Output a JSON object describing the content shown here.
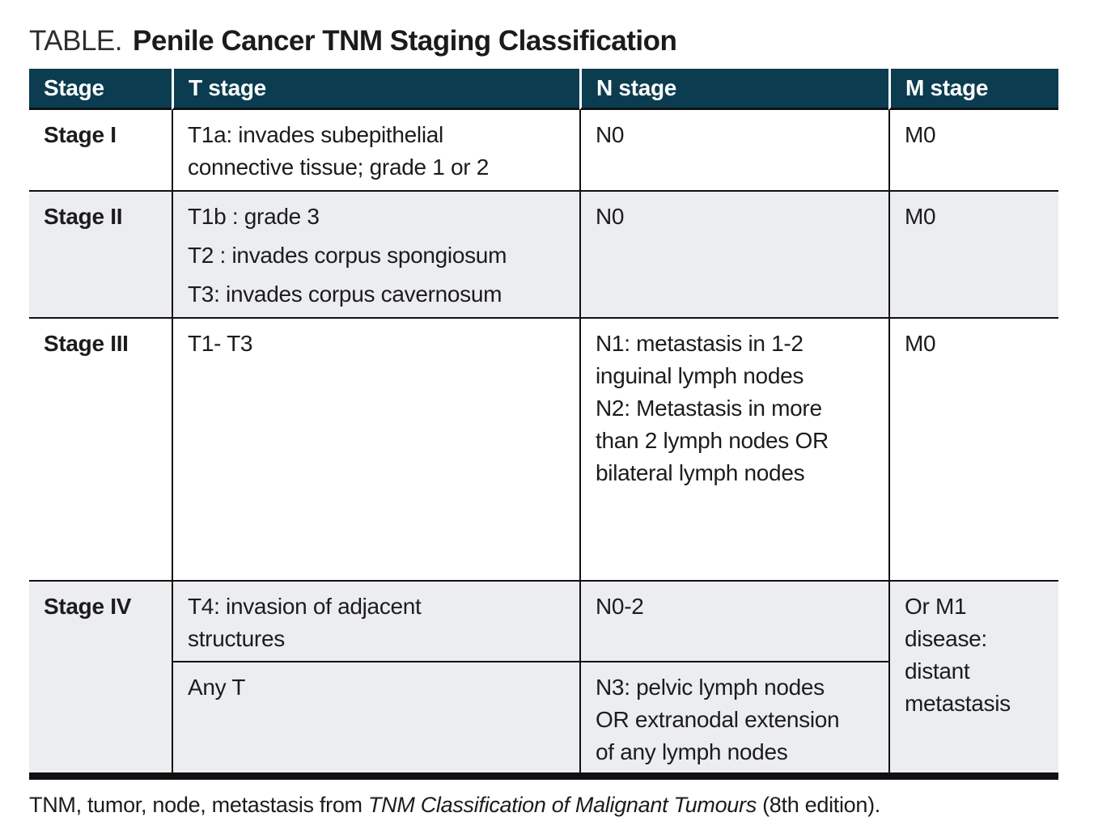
{
  "title": {
    "prefix": "TABLE.",
    "main": "Penile Cancer TNM Staging Classification"
  },
  "colors": {
    "header_bg": "#0b3c50",
    "header_text": "#ffffff",
    "alt_row_bg": "#ecedee",
    "border": "#101012",
    "body_text": "#1c1c1e"
  },
  "table": {
    "headers": [
      "Stage",
      "T stage",
      "N stage",
      "M stage"
    ],
    "rows": [
      {
        "stage": "Stage I",
        "t": "T1a: invades subepithelial\nconnective tissue; grade 1 or 2",
        "n": "N0",
        "m": "M0"
      },
      {
        "stage": "Stage II",
        "t": "T1b : grade 3\nT2 : invades corpus spongiosum\nT3: invades corpus cavernosum",
        "n": "N0",
        "m": "M0"
      },
      {
        "stage": "Stage III",
        "t": "T1- T3",
        "n": "N1: metastasis in 1-2\ninguinal lymph nodes\nN2: Metastasis in more\nthan 2 lymph nodes OR\nbilateral lymph nodes",
        "m": "M0"
      },
      {
        "stage": "Stage IV",
        "sub_rows": [
          {
            "t": "T4: invasion of adjacent\nstructures",
            "n": "N0-2"
          },
          {
            "t": "Any T",
            "n": "N3: pelvic lymph nodes\nOR extranodal extension\nof any lymph nodes"
          }
        ],
        "m": "Or M1\ndisease:\ndistant\nmetastasis"
      }
    ]
  },
  "footnote": {
    "text_before": "TNM, tumor, node, metastasis from ",
    "italic_text": "TNM Classification of Malignant Tumours",
    "text_after": " (8th edition)."
  }
}
